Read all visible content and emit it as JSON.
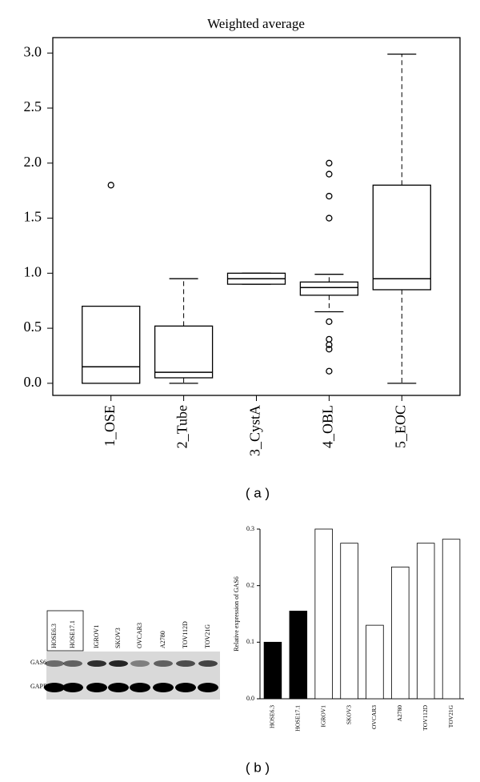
{
  "chart_data": [
    {
      "type": "box",
      "title": "Weighted average",
      "categories": [
        "1_OSE",
        "2_Tube",
        "3_CystA",
        "4_OBL",
        "5_EOC"
      ],
      "boxes": [
        {
          "whislo": 0.0,
          "q1": 0.0,
          "med": 0.15,
          "q3": 0.7,
          "whishi": 0.7,
          "fliers": [
            1.8
          ]
        },
        {
          "whislo": 0.0,
          "q1": 0.05,
          "med": 0.1,
          "q3": 0.52,
          "whishi": 0.95,
          "fliers": []
        },
        {
          "whislo": 0.9,
          "q1": 0.9,
          "med": 0.95,
          "q3": 1.0,
          "whishi": 1.0,
          "fliers": []
        },
        {
          "whislo": 0.65,
          "q1": 0.8,
          "med": 0.87,
          "q3": 0.92,
          "whishi": 0.99,
          "fliers": [
            2.0,
            1.9,
            1.7,
            1.5,
            0.56,
            0.4,
            0.35,
            0.31,
            0.11
          ]
        },
        {
          "whislo": 0.0,
          "q1": 0.85,
          "med": 0.95,
          "q3": 1.8,
          "whishi": 2.99,
          "fliers": []
        }
      ],
      "ylim": [
        -0.11,
        3.14
      ],
      "yticks": [
        {
          "value": 0,
          "label": "0.0"
        },
        0.5,
        {
          "value": 1,
          "label": "1.0"
        },
        1.5,
        {
          "value": 2,
          "label": "2.0"
        },
        2.5,
        {
          "value": 3,
          "label": "3.0"
        }
      ]
    },
    {
      "type": "bar",
      "ylabel": "Relative expression of GAS6",
      "categories": [
        "HOSE6.3",
        "HOSE17.1",
        "IGROV1",
        "SKOV3",
        "OVCAR3",
        "A2780",
        "TOV112D",
        "TOV21G"
      ],
      "values": [
        0.1,
        0.155,
        0.3,
        0.275,
        0.13,
        0.233,
        0.275,
        0.282
      ],
      "colors": [
        "#000000",
        "#000000",
        "#ffffff",
        "#ffffff",
        "#ffffff",
        "#ffffff",
        "#ffffff",
        "#ffffff"
      ],
      "ylim": [
        0,
        0.3
      ],
      "yticks": [
        {
          "value": 0,
          "label": "0.0"
        },
        0.1,
        0.2,
        0.3
      ]
    }
  ],
  "blot": {
    "lanes": [
      "HOSE6.3",
      "HOSE17.1",
      "IGROV1",
      "SKOV3",
      "OVCAR3",
      "A2780",
      "TOV112D",
      "TOV21G"
    ],
    "rows": [
      "GAS6",
      "GAPDH"
    ]
  },
  "panel_labels": [
    "( a )",
    "( b )"
  ]
}
